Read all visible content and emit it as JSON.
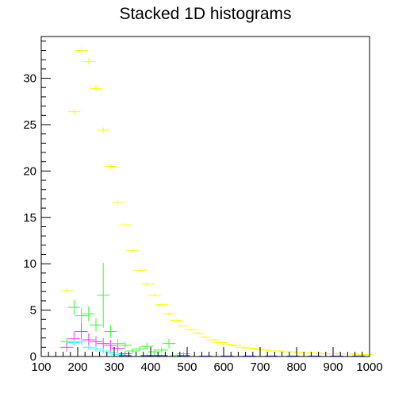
{
  "chart_data": {
    "type": "scatter",
    "title": "Stacked 1D histograms",
    "xlabel": "",
    "ylabel": "",
    "xlim": [
      100,
      1000
    ],
    "ylim": [
      0,
      34.5
    ],
    "x_ticks": [
      100,
      200,
      300,
      400,
      500,
      600,
      700,
      800,
      900,
      1000
    ],
    "x_tick_labels": [
      "100",
      "200",
      "300",
      "400",
      "500",
      "600",
      "700",
      "800",
      "900",
      "1000"
    ],
    "y_ticks": [
      0,
      5,
      10,
      15,
      20,
      25,
      30
    ],
    "y_tick_labels": [
      "0",
      "5",
      "10",
      "15",
      "20",
      "25",
      "30"
    ],
    "grid": false,
    "legend": "none",
    "series": [
      {
        "color": "#ffff00",
        "x": [
          170,
          190,
          210,
          230,
          250,
          270,
          290,
          310,
          330,
          350,
          370,
          390,
          410,
          430,
          450,
          470,
          490,
          510,
          530,
          550,
          570,
          590,
          610,
          630,
          650,
          670,
          690,
          710,
          730,
          750,
          770,
          790,
          810,
          830,
          850,
          870,
          890,
          910,
          930,
          950,
          970,
          990
        ],
        "y": [
          7.1,
          26.4,
          33.0,
          31.8,
          28.9,
          24.4,
          20.5,
          16.6,
          14.2,
          11.4,
          9.3,
          7.8,
          6.6,
          5.6,
          4.6,
          3.9,
          3.3,
          2.9,
          2.5,
          2.1,
          1.8,
          1.5,
          1.3,
          1.2,
          1.0,
          0.9,
          0.8,
          0.7,
          0.6,
          0.6,
          0.5,
          0.5,
          0.4,
          0.4,
          0.4,
          0.3,
          0.3,
          0.3,
          0.3,
          0.3,
          0.2,
          0.2
        ],
        "err": [
          0.15,
          0.3,
          0.35,
          0.35,
          0.3,
          0.3,
          0.25,
          0.25,
          0.2,
          0.2,
          0.2,
          0.15,
          0.15,
          0.15,
          0.15,
          0.1,
          0.1,
          0.1,
          0.1,
          0.1,
          0.1,
          0.1,
          0.1,
          0.1,
          0.1,
          0.1,
          0.1,
          0.1,
          0.1,
          0.1,
          0.1,
          0.1,
          0.1,
          0.1,
          0.1,
          0.1,
          0.1,
          0.1,
          0.1,
          0.1,
          0.1,
          0.1
        ]
      },
      {
        "color": "#33ff33",
        "x": [
          170,
          190,
          210,
          230,
          250,
          270,
          290,
          310,
          330,
          350,
          370,
          390,
          410,
          430,
          450,
          470,
          490
        ],
        "y": [
          1.6,
          5.3,
          4.4,
          4.6,
          3.4,
          6.6,
          2.7,
          1.4,
          1.2,
          0.6,
          0.8,
          1.1,
          0.5,
          0.7,
          1.4,
          0.1,
          0.3
        ],
        "err": [
          0.4,
          0.8,
          0.8,
          0.8,
          0.7,
          3.5,
          0.7,
          0.5,
          0.4,
          0.3,
          0.3,
          0.4,
          0.3,
          0.3,
          0.5,
          0.1,
          0.2
        ]
      },
      {
        "color": "#ff33ff",
        "x": [
          170,
          190,
          210,
          230,
          250,
          270,
          290,
          310,
          330
        ],
        "y": [
          1.0,
          1.9,
          2.7,
          1.8,
          1.6,
          1.4,
          1.2,
          0.9,
          0.3
        ],
        "err": [
          0.5,
          0.8,
          0.9,
          0.7,
          0.6,
          0.6,
          0.6,
          0.5,
          0.3
        ]
      },
      {
        "color": "#33ffff",
        "x": [
          190,
          210,
          230,
          250,
          270,
          290,
          310
        ],
        "y": [
          1.5,
          1.6,
          1.0,
          0.8,
          0.6,
          0.4,
          0.2
        ],
        "err": [
          0.4,
          0.4,
          0.3,
          0.3,
          0.3,
          0.2,
          0.2
        ]
      },
      {
        "color": "#3333ff",
        "x": [
          330,
          390,
          410,
          430,
          490,
          550,
          610,
          670,
          730,
          790,
          850,
          910,
          970
        ],
        "y": [
          0.1,
          0.1,
          0.1,
          0.1,
          0.1,
          0.05,
          0.05,
          0.05,
          0.05,
          0.05,
          0.05,
          0.05,
          0.05
        ],
        "err": [
          0.1,
          0.1,
          0.1,
          0.1,
          0.1,
          0.05,
          0.05,
          0.05,
          0.05,
          0.05,
          0.05,
          0.05,
          0.05
        ]
      }
    ],
    "bin_half_width": 8
  }
}
